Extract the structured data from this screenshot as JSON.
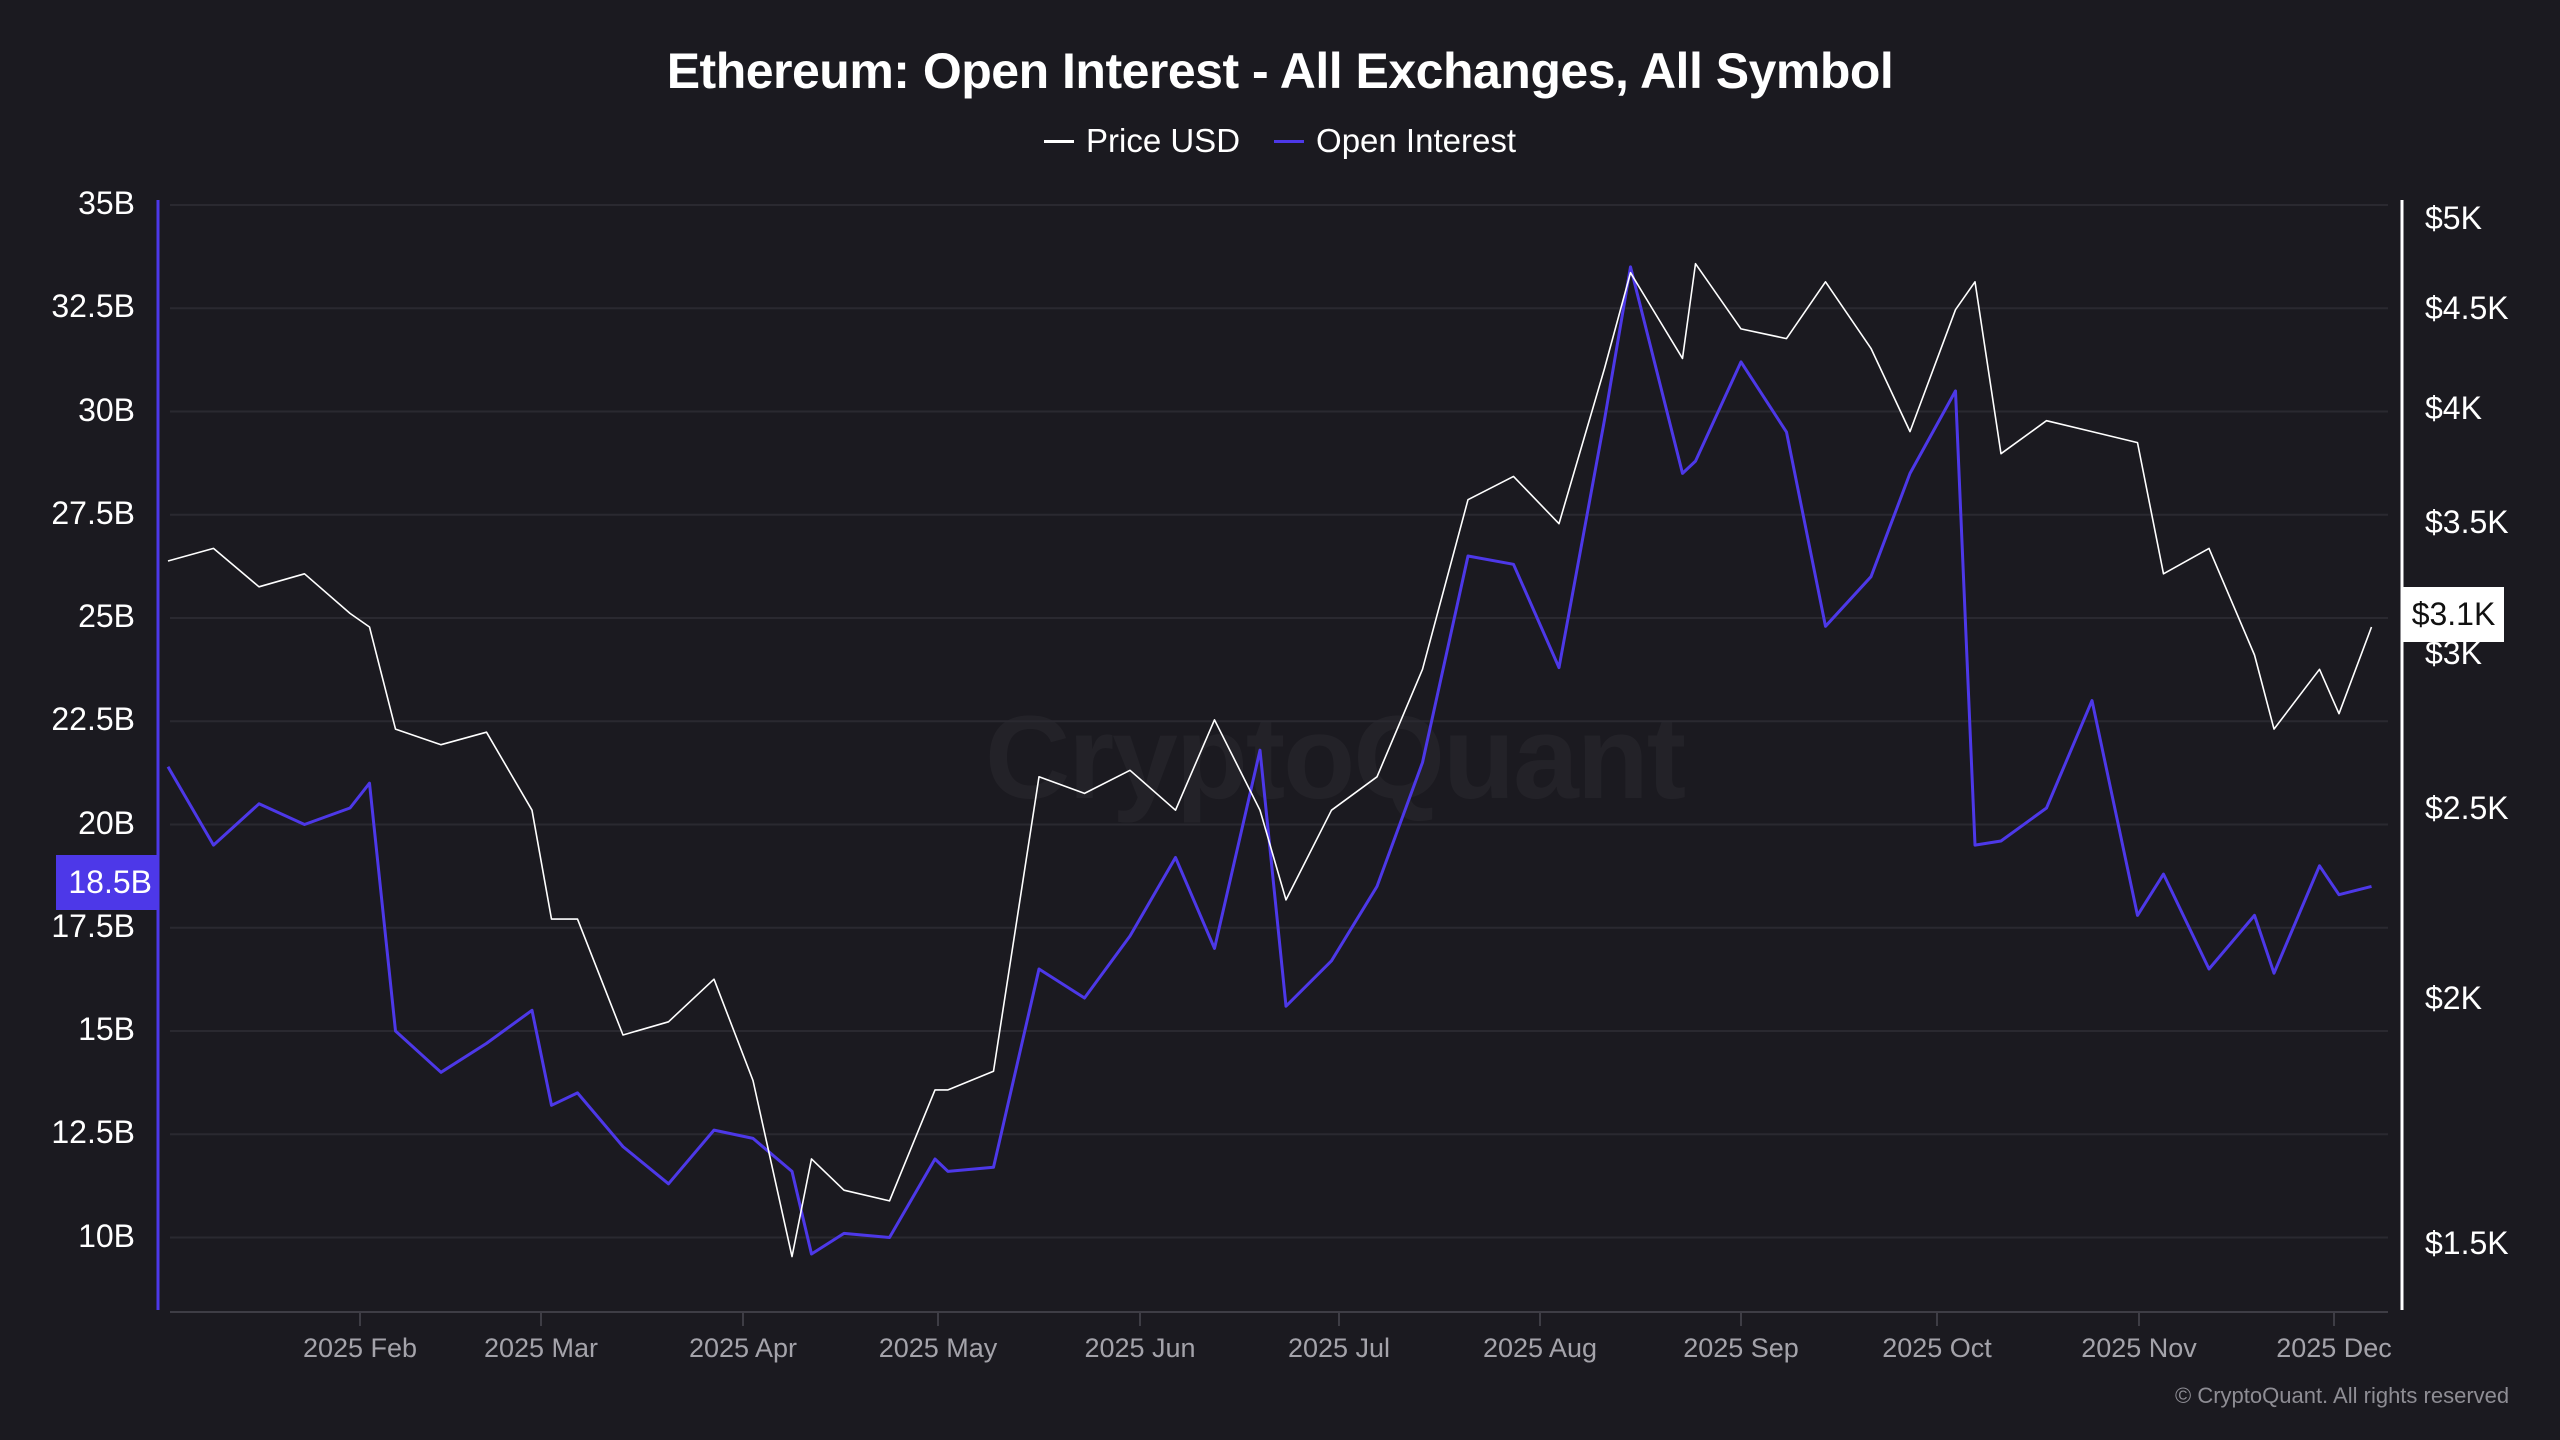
{
  "header": {
    "title": "Ethereum: Open Interest - All Exchanges, All Symbol"
  },
  "legend": [
    {
      "label": "Price USD",
      "color": "#ffffff"
    },
    {
      "label": "Open Interest",
      "color": "#4d38e8"
    }
  ],
  "badges": {
    "left_current": "18.5B",
    "right_current": "$3.1K"
  },
  "watermark": "CryptoQuant",
  "copyright": "© CryptoQuant. All rights reserved",
  "colors": {
    "background": "#1b1a20",
    "grid": "#2a2930",
    "price_line": "#ffffff",
    "oi_line": "#4d38e8",
    "left_axis": "#4d38e8",
    "right_axis": "#ffffff",
    "tick_text": "#a4a3aa"
  },
  "chart_data": {
    "type": "line",
    "title": "Ethereum: Open Interest - All Exchanges, All Symbol",
    "xlabel": "",
    "ylabel_left": "Open Interest",
    "ylabel_right": "Price USD",
    "legend_position": "top-center",
    "grid": true,
    "x_ticks": [
      "2025 Feb",
      "2025 Mar",
      "2025 Apr",
      "2025 May",
      "2025 Jun",
      "2025 Jul",
      "2025 Aug",
      "2025 Sep",
      "2025 Oct",
      "2025 Nov",
      "2025 Dec"
    ],
    "left_axis": {
      "ticks": [
        "35B",
        "32.5B",
        "30B",
        "27.5B",
        "25B",
        "22.5B",
        "20B",
        "17.5B",
        "15B",
        "12.5B",
        "10B"
      ],
      "tick_values": [
        35,
        32.5,
        30,
        27.5,
        25,
        22.5,
        20,
        17.5,
        15,
        12.5,
        10
      ],
      "range": [
        8.5,
        35.5
      ],
      "unit": "B USD"
    },
    "right_axis": {
      "scale": "log",
      "ticks": [
        "$5K",
        "$4.5K",
        "$4K",
        "$3.5K",
        "$3K",
        "$2.5K",
        "$2K",
        "$1.5K"
      ],
      "tick_values": [
        5000,
        4500,
        4000,
        3500,
        3000,
        2500,
        2000,
        1500
      ],
      "range": [
        1330,
        5100
      ]
    },
    "current_values": {
      "open_interest": "18.5B",
      "price": "$3.1K"
    },
    "x": [
      "2025-01-01",
      "2025-01-08",
      "2025-01-15",
      "2025-01-22",
      "2025-01-29",
      "2025-02-01",
      "2025-02-05",
      "2025-02-12",
      "2025-02-19",
      "2025-02-26",
      "2025-03-01",
      "2025-03-05",
      "2025-03-12",
      "2025-03-19",
      "2025-03-26",
      "2025-04-01",
      "2025-04-07",
      "2025-04-10",
      "2025-04-15",
      "2025-04-22",
      "2025-04-29",
      "2025-05-01",
      "2025-05-08",
      "2025-05-15",
      "2025-05-22",
      "2025-05-29",
      "2025-06-05",
      "2025-06-11",
      "2025-06-18",
      "2025-06-22",
      "2025-06-29",
      "2025-07-06",
      "2025-07-13",
      "2025-07-20",
      "2025-07-27",
      "2025-08-03",
      "2025-08-10",
      "2025-08-14",
      "2025-08-22",
      "2025-08-24",
      "2025-08-31",
      "2025-09-07",
      "2025-09-13",
      "2025-09-20",
      "2025-09-26",
      "2025-10-03",
      "2025-10-06",
      "2025-10-10",
      "2025-10-17",
      "2025-10-24",
      "2025-10-31",
      "2025-11-04",
      "2025-11-11",
      "2025-11-18",
      "2025-11-21",
      "2025-11-28",
      "2025-12-01",
      "2025-12-06"
    ],
    "series": [
      {
        "name": "Price USD",
        "axis": "right",
        "values": [
          3350,
          3400,
          3250,
          3300,
          3150,
          3100,
          2750,
          2700,
          2740,
          2500,
          2200,
          2200,
          1920,
          1950,
          2050,
          1820,
          1480,
          1660,
          1600,
          1580,
          1800,
          1800,
          1840,
          2600,
          2550,
          2620,
          2500,
          2780,
          2500,
          2250,
          2500,
          2600,
          2950,
          3600,
          3700,
          3500,
          4200,
          4700,
          4250,
          4750,
          4400,
          4350,
          4650,
          4300,
          3900,
          4500,
          4650,
          3800,
          3950,
          3900,
          3850,
          3300,
          3400,
          3000,
          2750,
          2950,
          2800,
          3100
        ]
      },
      {
        "name": "Open Interest",
        "axis": "left",
        "values": [
          21.4,
          19.5,
          20.5,
          20,
          20.4,
          21,
          15,
          14,
          14.7,
          15.5,
          13.2,
          13.5,
          12.2,
          11.3,
          12.6,
          12.4,
          11.6,
          9.6,
          10.1,
          10,
          11.9,
          11.6,
          11.7,
          16.5,
          15.8,
          17.3,
          19.2,
          17,
          21.8,
          15.6,
          16.7,
          18.5,
          21.5,
          26.5,
          26.3,
          23.8,
          29.8,
          33.5,
          28.5,
          28.8,
          31.2,
          29.5,
          24.8,
          26,
          28.5,
          30.5,
          19.5,
          19.6,
          20.4,
          23,
          17.8,
          18.8,
          16.5,
          17.8,
          16.4,
          19,
          18.3,
          18.5
        ]
      }
    ]
  }
}
